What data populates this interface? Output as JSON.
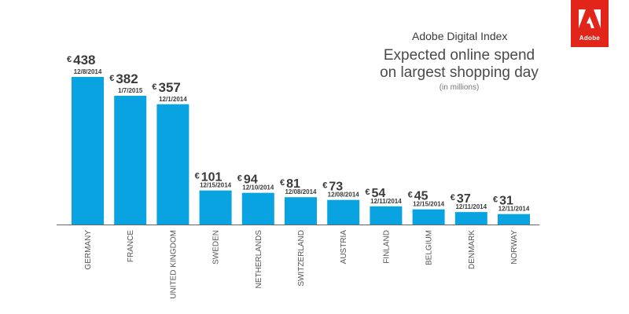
{
  "header": {
    "brand": "Adobe Digital Index",
    "title_line1": "Expected online spend",
    "title_line2": "on largest shopping day",
    "subtitle": "(in millions)",
    "logo_text": "Adobe"
  },
  "colors": {
    "bar": "#0aa3e1",
    "text": "#3a3a3a",
    "axis": "#666666",
    "logo": "#e1251b"
  },
  "chart_data": {
    "type": "bar",
    "title": "Expected online spend on largest shopping day",
    "subtitle": "(in millions)",
    "currency": "€",
    "categories": [
      "GERMANY",
      "FRANCE",
      "UNITED KINGDOM",
      "SWEDEN",
      "NETHERLANDS",
      "SWITZERLAND",
      "AUSTRIA",
      "FINLAND",
      "BELGIUM",
      "DENMARK",
      "NORWAY"
    ],
    "values": [
      438,
      382,
      357,
      101,
      94,
      81,
      73,
      54,
      45,
      37,
      31
    ],
    "dates": [
      "12/8/2014",
      "1/7/2015",
      "12/1/2014",
      "12/15/2014",
      "12/10/2014",
      "12/08/2014",
      "12/08/2014",
      "12/11/2014",
      "12/15/2014",
      "12/11/2014",
      "12/11/2014"
    ],
    "ylim": [
      0,
      438
    ],
    "xlabel": "",
    "ylabel": ""
  }
}
